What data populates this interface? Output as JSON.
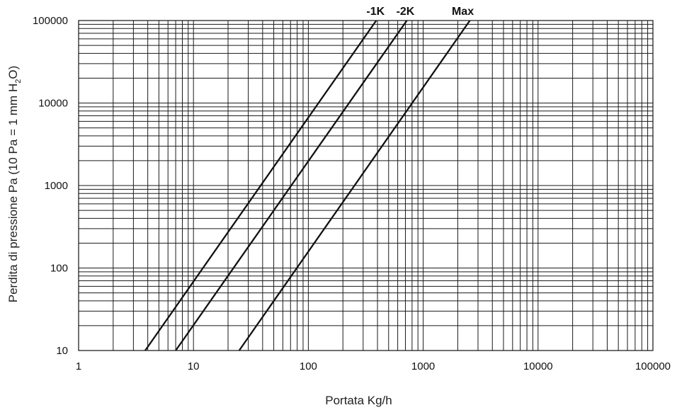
{
  "chart_data": {
    "type": "line",
    "title": "",
    "xlabel": "Portata Kg/h",
    "ylabel": {
      "prefix": "Perdita di pressione Pa (10 Pa = 1 mm H",
      "sub1": "2",
      "suffix": "O)"
    },
    "x_scale": "log",
    "y_scale": "log",
    "xlim": [
      1,
      100000
    ],
    "ylim": [
      10,
      100000
    ],
    "x_ticks": [
      "1",
      "10",
      "100",
      "1000",
      "10000",
      "100000"
    ],
    "y_ticks": [
      "10",
      "100",
      "1000",
      "10000",
      "100000"
    ],
    "grid": true,
    "series": [
      {
        "name": "-1K",
        "x": [
          3.8,
          390
        ],
        "y": [
          10,
          100000
        ]
      },
      {
        "name": "-2K",
        "x": [
          7.0,
          720
        ],
        "y": [
          10,
          100000
        ]
      },
      {
        "name": "Max",
        "x": [
          25,
          2550
        ],
        "y": [
          10,
          100000
        ]
      }
    ]
  }
}
